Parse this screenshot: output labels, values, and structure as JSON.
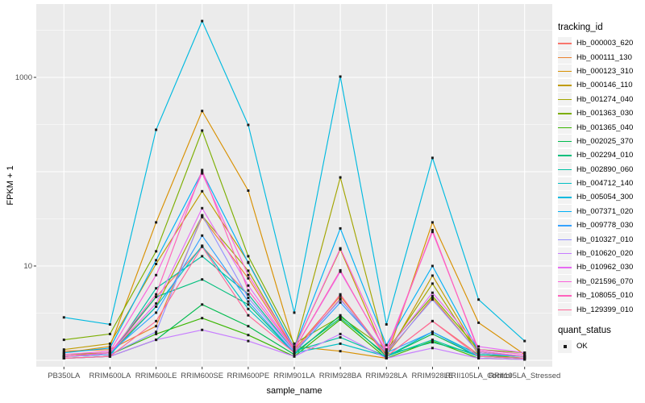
{
  "figure": {
    "background": "#FFFFFF",
    "panel_background": "#EBEBEB",
    "grid_color": "#FFFFFF",
    "tick_color": "#333333",
    "tick_label_color": "#4D4D4D",
    "point_color": "#1A1A1A"
  },
  "chart_data": {
    "type": "line",
    "title": "",
    "xlabel": "sample_name",
    "ylabel": "FPKM + 1",
    "y_scale": "log10",
    "ylim": [
      0.85,
      6000
    ],
    "grid": true,
    "legend_position": "right",
    "point_shape": "filled-square",
    "y_ticks": [
      {
        "value": 1000,
        "label": "1000"
      },
      {
        "value": 10,
        "label": "10"
      }
    ],
    "y_gridlines_major": [
      1,
      10,
      100,
      1000
    ],
    "y_gridlines_minor": [
      3.162,
      31.62,
      316.2,
      3162
    ],
    "categories": [
      "PB350LA",
      "RRIM600LA",
      "RRIM600LE",
      "RRIM600SE",
      "RRIM600PE",
      "RRIM901LA",
      "RRIM928BA",
      "RRIM928LA",
      "RRIM928LE",
      "RRII105LA_Control",
      "RRII105LA_Stressed"
    ],
    "series": [
      {
        "name": "Hb_000003_620",
        "color": "#F8766D",
        "values": [
          1.1,
          1.15,
          4.7,
          16,
          5.0,
          1.25,
          4.5,
          1.1,
          2.6,
          1.15,
          1.05
        ]
      },
      {
        "name": "Hb_000111_130",
        "color": "#EA8331",
        "values": [
          1.25,
          1.3,
          2.3,
          33,
          7.4,
          1.3,
          4.8,
          1.15,
          4.6,
          1.2,
          1.1
        ]
      },
      {
        "name": "Hb_000123_310",
        "color": "#D89000",
        "values": [
          1.2,
          1.4,
          29,
          440,
          63,
          1.4,
          1.25,
          1.05,
          29,
          2.5,
          1.15
        ]
      },
      {
        "name": "Hb_000146_110",
        "color": "#C09B00",
        "values": [
          1.3,
          1.5,
          10.5,
          62,
          11,
          1.35,
          15,
          1.1,
          7.9,
          1.2,
          1.1
        ]
      },
      {
        "name": "Hb_001274_040",
        "color": "#A3A500",
        "values": [
          1.15,
          1.2,
          3.7,
          34,
          8.9,
          1.3,
          87,
          1.2,
          6.5,
          1.15,
          1.05
        ]
      },
      {
        "name": "Hb_001363_030",
        "color": "#7CAE00",
        "values": [
          1.65,
          1.9,
          14.3,
          273,
          12.7,
          1.5,
          2.9,
          1.3,
          4.8,
          1.3,
          1.2
        ]
      },
      {
        "name": "Hb_001365_040",
        "color": "#39B600",
        "values": [
          1.1,
          1.15,
          1.9,
          2.8,
          1.85,
          1.1,
          2.7,
          1.05,
          1.6,
          1.05,
          1.02
        ]
      },
      {
        "name": "Hb_002025_370",
        "color": "#00BB4E",
        "values": [
          1.05,
          1.1,
          1.65,
          3.9,
          2.3,
          1.15,
          3.0,
          1.1,
          1.9,
          1.1,
          1.05
        ]
      },
      {
        "name": "Hb_002294_010",
        "color": "#00BF7D",
        "values": [
          1.1,
          1.2,
          4.7,
          7.2,
          3.9,
          1.2,
          2.8,
          1.15,
          1.55,
          1.15,
          1.1
        ]
      },
      {
        "name": "Hb_002890_060",
        "color": "#00C1A3",
        "values": [
          1.05,
          1.1,
          5.8,
          12.7,
          5.0,
          1.25,
          1.75,
          1.1,
          1.65,
          1.1,
          1.05
        ]
      },
      {
        "name": "Hb_004712_140",
        "color": "#00BFC4",
        "values": [
          1.1,
          1.15,
          3.7,
          16.4,
          3.5,
          1.2,
          1.5,
          1.1,
          2.0,
          1.15,
          1.1
        ]
      },
      {
        "name": "Hb_005054_300",
        "color": "#00BAE0",
        "values": [
          2.85,
          2.4,
          278,
          3960,
          313,
          3.2,
          1020,
          2.4,
          140,
          4.4,
          1.6
        ]
      },
      {
        "name": "Hb_007371_020",
        "color": "#00B0F6",
        "values": [
          1.2,
          1.35,
          11.5,
          100,
          10.8,
          1.35,
          25,
          1.45,
          10,
          1.25,
          1.1
        ]
      },
      {
        "name": "Hb_009778_030",
        "color": "#35A2FF",
        "values": [
          1.1,
          1.2,
          3.2,
          21,
          4.2,
          1.2,
          4.1,
          1.2,
          2.0,
          1.1,
          1.05
        ]
      },
      {
        "name": "Hb_010327_010",
        "color": "#9590FF",
        "values": [
          1.1,
          1.15,
          2.0,
          34.5,
          4.6,
          1.25,
          4.4,
          1.2,
          4.4,
          1.2,
          1.1
        ]
      },
      {
        "name": "Hb_010620_020",
        "color": "#C77CFF",
        "values": [
          1.05,
          1.1,
          1.65,
          2.1,
          1.6,
          1.1,
          1.9,
          1.05,
          1.35,
          1.05,
          1.02
        ]
      },
      {
        "name": "Hb_010962_030",
        "color": "#E76BF3",
        "values": [
          1.1,
          1.2,
          4.0,
          41,
          6.2,
          1.3,
          8.7,
          1.25,
          5.2,
          1.4,
          1.2
        ]
      },
      {
        "name": "Hb_021596_070",
        "color": "#FA62DB",
        "values": [
          1.15,
          1.25,
          8.0,
          96,
          8.0,
          1.35,
          15.4,
          1.3,
          23,
          1.3,
          1.15
        ]
      },
      {
        "name": "Hb_108055_010",
        "color": "#FF62BC",
        "values": [
          1.1,
          1.2,
          5.0,
          104,
          5.5,
          1.3,
          9.0,
          1.2,
          24,
          1.25,
          1.1
        ]
      },
      {
        "name": "Hb_129399_010",
        "color": "#FF6A98",
        "values": [
          1.05,
          1.1,
          2.6,
          16,
          3.0,
          1.2,
          5.0,
          1.1,
          2.6,
          1.1,
          1.05
        ]
      }
    ],
    "legend": {
      "color_title": "tracking_id",
      "shape_title": "quant_status",
      "shape_items": [
        {
          "label": "OK"
        }
      ]
    }
  }
}
